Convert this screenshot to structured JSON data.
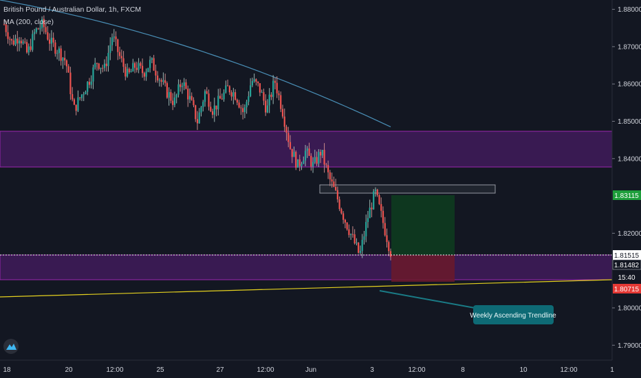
{
  "header": {
    "symbol_title": "British Pound / Australian Dollar, 1h, FXCM",
    "indicator": "MA (200, close)"
  },
  "y_axis": {
    "ticks": [
      "1.88000",
      "1.87000",
      "1.86000",
      "1.85000",
      "1.84000",
      "1.82000",
      "1.80000",
      "1.79000"
    ],
    "tick_values": [
      1.88,
      1.87,
      1.86,
      1.85,
      1.84,
      1.82,
      1.8,
      1.79
    ]
  },
  "x_axis": {
    "ticks": [
      "18",
      "20",
      "12:00",
      "25",
      "27",
      "12:00",
      "Jun",
      "3",
      "12:00",
      "8",
      "10",
      "12:00",
      "1"
    ]
  },
  "price_badges": {
    "target": {
      "label": "1.83115",
      "value": 1.83115,
      "color": "#26a69a"
    },
    "entry": {
      "label": "1.81515",
      "value": 1.81515,
      "color": "#ffffff"
    },
    "last": {
      "label": "1.81482",
      "value": 1.81482,
      "color": "#ffffff"
    },
    "countdown": {
      "label": "15:40"
    },
    "stop": {
      "label": "1.80715",
      "value": 1.80715,
      "color": "#ef5350"
    }
  },
  "annotation": {
    "text": "Weekly Ascending Trendline"
  },
  "chart_data": {
    "type": "candlestick",
    "title": "British Pound / Australian Dollar, 1h, FXCM",
    "ylim": [
      1.786,
      1.8825
    ],
    "x_ticks": [
      "18",
      "20",
      "12:00",
      "25",
      "27",
      "12:00",
      "Jun",
      "3",
      "12:00",
      "8",
      "10",
      "12:00",
      "1"
    ],
    "y_ticks": [
      1.88,
      1.87,
      1.86,
      1.85,
      1.84,
      1.82,
      1.8,
      1.79
    ],
    "close_path_approx": [
      1.876,
      1.871,
      1.873,
      1.868,
      1.874,
      1.876,
      1.871,
      1.869,
      1.866,
      1.853,
      1.857,
      1.861,
      1.866,
      1.864,
      1.873,
      1.867,
      1.862,
      1.865,
      1.863,
      1.866,
      1.862,
      1.858,
      1.855,
      1.861,
      1.856,
      1.85,
      1.858,
      1.853,
      1.856,
      1.859,
      1.857,
      1.852,
      1.861,
      1.859,
      1.853,
      1.861,
      1.853,
      1.843,
      1.838,
      1.842,
      1.838,
      1.842,
      1.835,
      1.83,
      1.824,
      1.819,
      1.814,
      1.824,
      1.831,
      1.823,
      1.815
    ],
    "moving_average": {
      "name": "MA (200, close)",
      "color": "#4a90b8",
      "start": 1.8825,
      "end": 1.8485
    },
    "zones": [
      {
        "type": "resistance",
        "top": 1.8483,
        "bottom": 1.8387,
        "color": "#7b1fa2"
      },
      {
        "type": "support",
        "top": 1.815,
        "bottom": 1.8077,
        "color": "#7b1fa2"
      },
      {
        "type": "box",
        "top": 1.8333,
        "bottom": 1.8314,
        "color": "#787b86"
      }
    ],
    "position": {
      "entry": 1.81515,
      "target": 1.83115,
      "stop": 1.80715
    },
    "trendline": {
      "label": "Weekly Ascending Trendline",
      "start": 1.8024,
      "end": 1.8077,
      "color": "#ffeb3b"
    },
    "legend": "top-left"
  }
}
